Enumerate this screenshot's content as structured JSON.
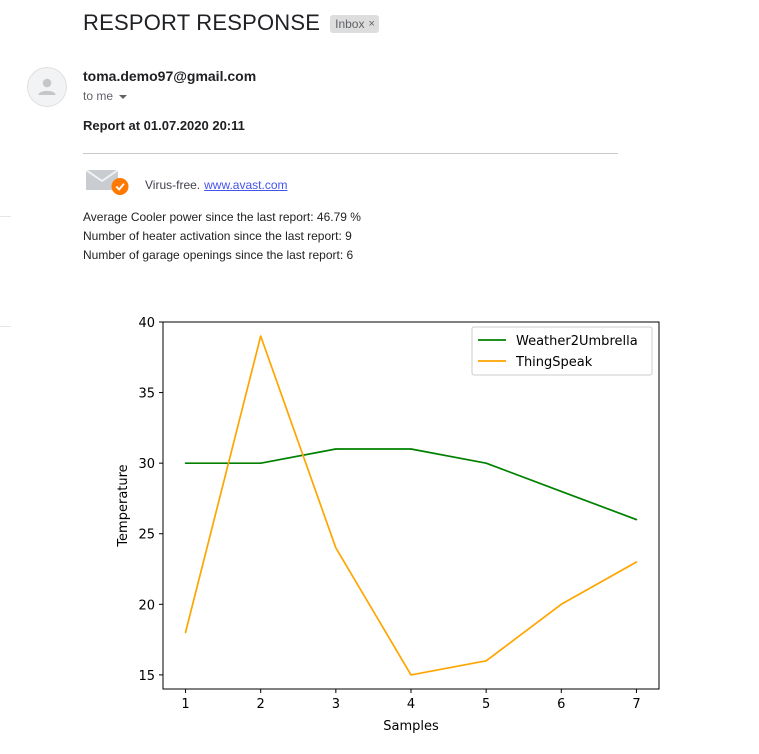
{
  "email": {
    "subject": "RESPORT RESPONSE",
    "label": "Inbox",
    "label_close": "×",
    "sender": "toma.demo97@gmail.com",
    "recipient": "to me",
    "report_title": "Report at 01.07.2020 20:11",
    "virus_free_text": "Virus-free.",
    "virus_free_link": "www.avast.com",
    "stats": [
      "Average Cooler power since the last report: 46.79 %",
      "Number of heater activation since the last report: 9",
      "Number of garage openings since the last report: 6"
    ]
  },
  "icons": {
    "avatar": "person-icon",
    "avast": "envelope-check-icon",
    "recipient_menu": "chevron-down-icon"
  },
  "colors": {
    "weather_series": "#008000",
    "thingspeak_series": "#ffa500",
    "link": "#4453ea",
    "label_bg": "#dddddd"
  },
  "chart_data": {
    "type": "line",
    "xlabel": "Samples",
    "ylabel": "Temperature",
    "x": [
      1,
      2,
      3,
      4,
      5,
      6,
      7
    ],
    "xlim": [
      0.7,
      7.3
    ],
    "ylim": [
      14,
      40
    ],
    "xticks": [
      1,
      2,
      3,
      4,
      5,
      6,
      7
    ],
    "yticks": [
      15,
      20,
      25,
      30,
      35,
      40
    ],
    "grid": false,
    "legend_position": "top-right",
    "series": [
      {
        "name": "Weather2Umbrella",
        "color": "#008000",
        "values": [
          30,
          30,
          31,
          31,
          30,
          28,
          26
        ]
      },
      {
        "name": "ThingSpeak",
        "color": "#ffa500",
        "values": [
          18,
          39,
          24,
          15,
          16,
          20,
          23
        ]
      }
    ]
  }
}
